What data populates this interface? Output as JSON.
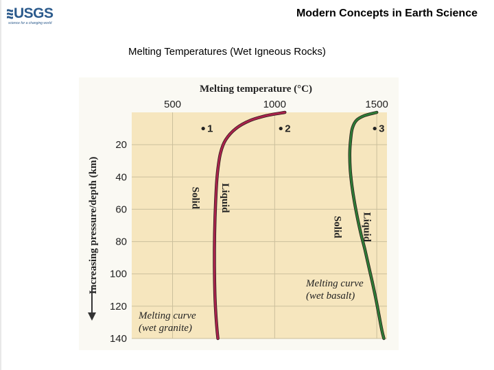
{
  "header": {
    "logo_text": "USGS",
    "logo_tagline": "science for a changing world",
    "title": "Modern Concepts in Earth Science"
  },
  "slide": {
    "title": "Melting Temperatures (Wet Igneous Rocks)"
  },
  "colors": {
    "plot_background": "#f6e6be",
    "grid": "#cbbf9c",
    "granite_curve": "#a8234b",
    "basalt_curve": "#2e7a36",
    "logo": "#2b5a8c"
  },
  "chart_data": {
    "type": "line",
    "title": "Melting temperature (°C)",
    "ylabel": "Increasing pressure/depth (km)",
    "x_axis_position": "top",
    "xlim": [
      300,
      1550
    ],
    "ylim": [
      0,
      140
    ],
    "y_inverted": true,
    "x_ticks": [
      500,
      1000,
      1500
    ],
    "y_ticks": [
      20,
      40,
      60,
      80,
      100,
      120,
      140
    ],
    "grid": true,
    "series": [
      {
        "name": "Melting curve (wet granite)",
        "label": [
          "Melting curve",
          "(wet granite)"
        ],
        "points": [
          [
            1050,
            0
          ],
          [
            960,
            2
          ],
          [
            880,
            5
          ],
          [
            810,
            10
          ],
          [
            760,
            17
          ],
          [
            735,
            25
          ],
          [
            722,
            35
          ],
          [
            715,
            45
          ],
          [
            711,
            55
          ],
          [
            708,
            65
          ],
          [
            706,
            75
          ],
          [
            705,
            85
          ],
          [
            705,
            95
          ],
          [
            706,
            105
          ],
          [
            708,
            115
          ],
          [
            712,
            125
          ],
          [
            718,
            135
          ],
          [
            722,
            140
          ]
        ]
      },
      {
        "name": "Melting curve (wet basalt)",
        "label": [
          "Melting curve",
          "(wet basalt)"
        ],
        "points": [
          [
            1500,
            0
          ],
          [
            1440,
            2
          ],
          [
            1400,
            5
          ],
          [
            1380,
            10
          ],
          [
            1372,
            17
          ],
          [
            1368,
            25
          ],
          [
            1370,
            35
          ],
          [
            1378,
            45
          ],
          [
            1390,
            55
          ],
          [
            1405,
            65
          ],
          [
            1422,
            75
          ],
          [
            1442,
            85
          ],
          [
            1460,
            95
          ],
          [
            1478,
            105
          ],
          [
            1495,
            115
          ],
          [
            1510,
            125
          ],
          [
            1525,
            135
          ],
          [
            1535,
            140
          ]
        ]
      }
    ],
    "region_labels": [
      {
        "text": "Solid",
        "x": 615,
        "y": 53
      },
      {
        "text": "Liquid",
        "x": 760,
        "y": 53
      },
      {
        "text": "Solid",
        "x": 1310,
        "y": 71
      },
      {
        "text": "Liquid",
        "x": 1455,
        "y": 71
      }
    ],
    "points_of_interest": [
      {
        "label": "1",
        "x": 650,
        "y": 10
      },
      {
        "label": "2",
        "x": 1030,
        "y": 10
      },
      {
        "label": "3",
        "x": 1490,
        "y": 10
      }
    ]
  }
}
